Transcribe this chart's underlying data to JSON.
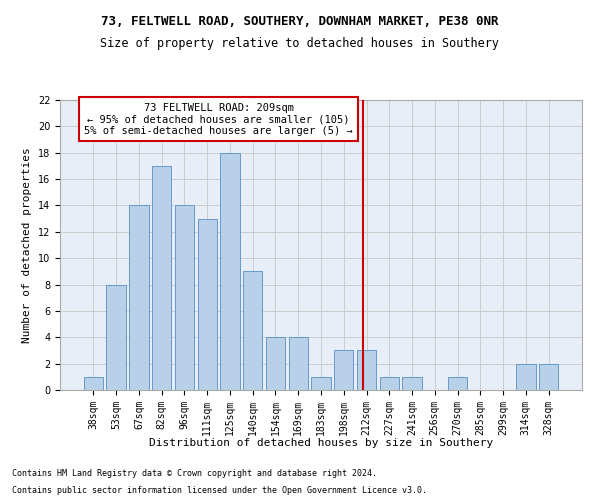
{
  "title_line1": "73, FELTWELL ROAD, SOUTHERY, DOWNHAM MARKET, PE38 0NR",
  "title_line2": "Size of property relative to detached houses in Southery",
  "xlabel": "Distribution of detached houses by size in Southery",
  "ylabel": "Number of detached properties",
  "bar_labels": [
    "38sqm",
    "53sqm",
    "67sqm",
    "82sqm",
    "96sqm",
    "111sqm",
    "125sqm",
    "140sqm",
    "154sqm",
    "169sqm",
    "183sqm",
    "198sqm",
    "212sqm",
    "227sqm",
    "241sqm",
    "256sqm",
    "270sqm",
    "285sqm",
    "299sqm",
    "314sqm",
    "328sqm"
  ],
  "bar_values": [
    1,
    8,
    14,
    17,
    14,
    13,
    18,
    9,
    4,
    4,
    1,
    3,
    3,
    1,
    1,
    0,
    1,
    0,
    0,
    2,
    2
  ],
  "bar_color": "#b8d0e8",
  "bar_edge_color": "#6699cc",
  "vline_color": "#cc0000",
  "annotation_text": "73 FELTWELL ROAD: 209sqm\n← 95% of detached houses are smaller (105)\n5% of semi-detached houses are larger (5) →",
  "annotation_box_color": "#cc0000",
  "ylim": [
    0,
    22
  ],
  "yticks": [
    0,
    2,
    4,
    6,
    8,
    10,
    12,
    14,
    16,
    18,
    20,
    22
  ],
  "grid_color": "#cccccc",
  "background_color": "#e8eef8",
  "footer_line1": "Contains HM Land Registry data © Crown copyright and database right 2024.",
  "footer_line2": "Contains public sector information licensed under the Open Government Licence v3.0.",
  "title_fontsize": 9,
  "subtitle_fontsize": 8.5,
  "axis_label_fontsize": 8,
  "tick_fontsize": 7,
  "annotation_fontsize": 7.5,
  "footer_fontsize": 6
}
